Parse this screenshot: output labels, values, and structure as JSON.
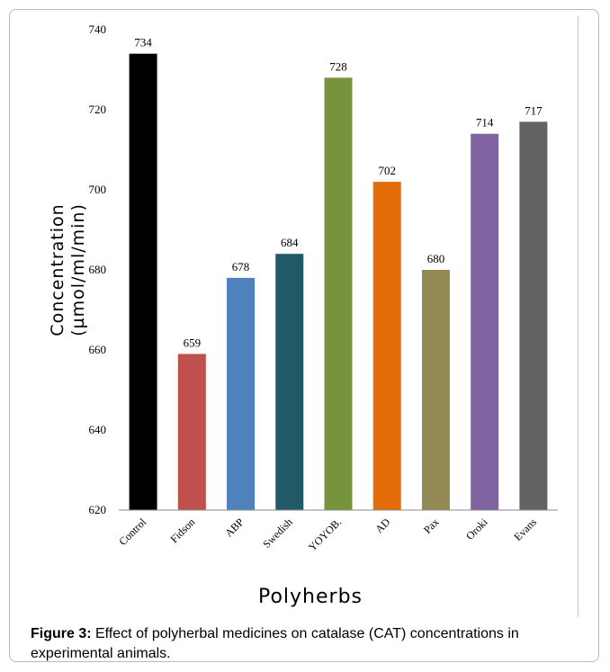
{
  "chart_data": {
    "type": "bar",
    "categories": [
      "Control",
      "Fidson",
      "ABP",
      "Swedish",
      "YOYOB.",
      "AD",
      "Pax",
      "Oroki",
      "Evans"
    ],
    "values": [
      734,
      659,
      678,
      684,
      728,
      702,
      680,
      714,
      717
    ],
    "data_labels": [
      "734",
      "659",
      "678",
      "684",
      "728",
      "702",
      "680",
      "714",
      "717"
    ],
    "colors": [
      "#000000",
      "#c0504d",
      "#4f81bd",
      "#215968",
      "#77933c",
      "#e46c0a",
      "#948a54",
      "#8064a2",
      "#636363"
    ],
    "ylim": [
      620,
      740
    ],
    "yticks": [
      "620",
      "640",
      "660",
      "680",
      "700",
      "720",
      "740"
    ],
    "ylabel_line1": "Concentration",
    "ylabel_line2": "(µmol/ml/min)",
    "xlabel": "Polyherbs",
    "grid": false,
    "legend": "none"
  },
  "caption": {
    "label": "Figure 3:",
    "text": " Effect of polyherbal medicines on catalase (CAT) concentrations in experimental animals."
  }
}
